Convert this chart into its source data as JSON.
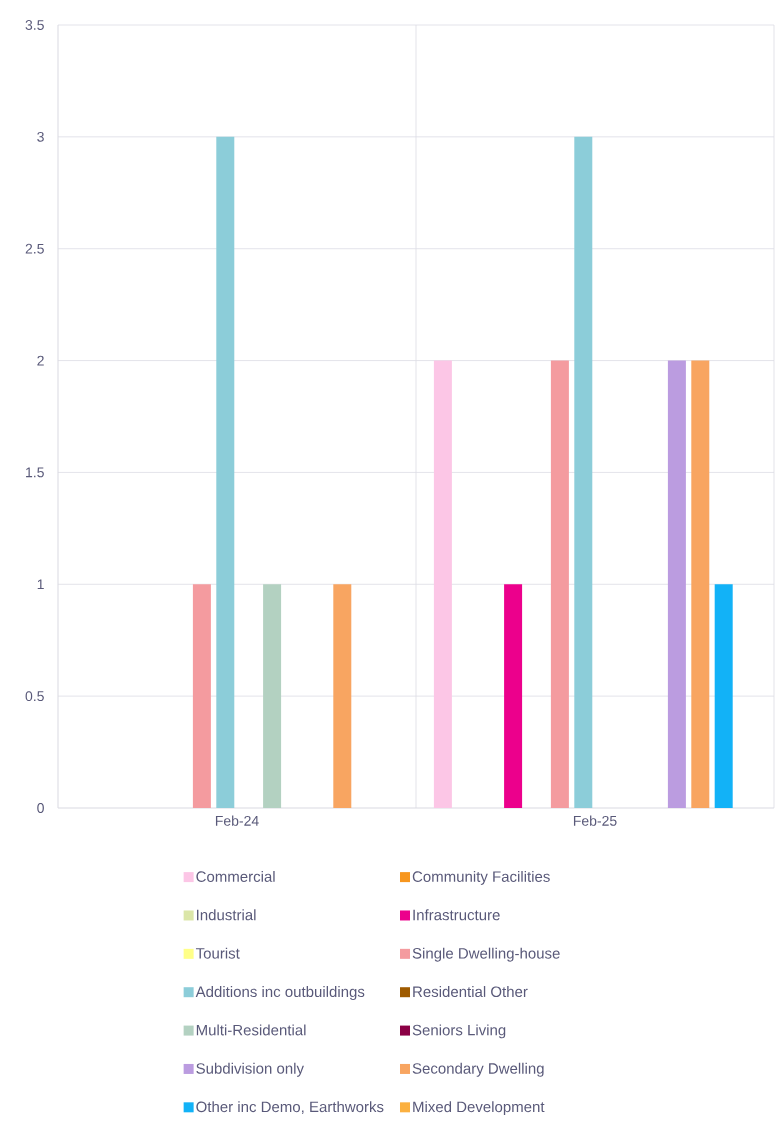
{
  "chart_data": {
    "type": "bar",
    "categories": [
      "Feb-24",
      "Feb-25"
    ],
    "ylim": [
      0,
      3.5
    ],
    "yticks": [
      0,
      0.5,
      1,
      1.5,
      2,
      2.5,
      3,
      3.5
    ],
    "grid": true,
    "legend": "bottom",
    "series": [
      {
        "name": "Commercial",
        "color": "#fcc6e6",
        "values": [
          null,
          2
        ]
      },
      {
        "name": "Community Facilities",
        "color": "#f7961e",
        "values": [
          null,
          null
        ]
      },
      {
        "name": "Industrial",
        "color": "#dbe6a8",
        "values": [
          null,
          null
        ]
      },
      {
        "name": "Infrastructure",
        "color": "#ec008c",
        "values": [
          null,
          1
        ]
      },
      {
        "name": "Tourist",
        "color": "#ffff88",
        "values": [
          null,
          null
        ]
      },
      {
        "name": "Single Dwelling-house",
        "color": "#f49b9f",
        "values": [
          1,
          2
        ]
      },
      {
        "name": "Additions inc outbuildings",
        "color": "#8ccdd9",
        "values": [
          3,
          3
        ]
      },
      {
        "name": "Residential Other",
        "color": "#9e5a00",
        "values": [
          null,
          null
        ]
      },
      {
        "name": "Multi-Residential",
        "color": "#b3d1c1",
        "values": [
          1,
          null
        ]
      },
      {
        "name": "Seniors Living",
        "color": "#8b0045",
        "values": [
          null,
          null
        ]
      },
      {
        "name": "Subdivision only",
        "color": "#bb9ce0",
        "values": [
          null,
          2
        ]
      },
      {
        "name": "Secondary Dwelling",
        "color": "#f8a561",
        "values": [
          1,
          2
        ]
      },
      {
        "name": "Other inc Demo, Earthworks",
        "color": "#12b2f7",
        "values": [
          null,
          1
        ]
      },
      {
        "name": "Mixed Development",
        "color": "#fbb040",
        "values": [
          null,
          null
        ]
      }
    ]
  }
}
